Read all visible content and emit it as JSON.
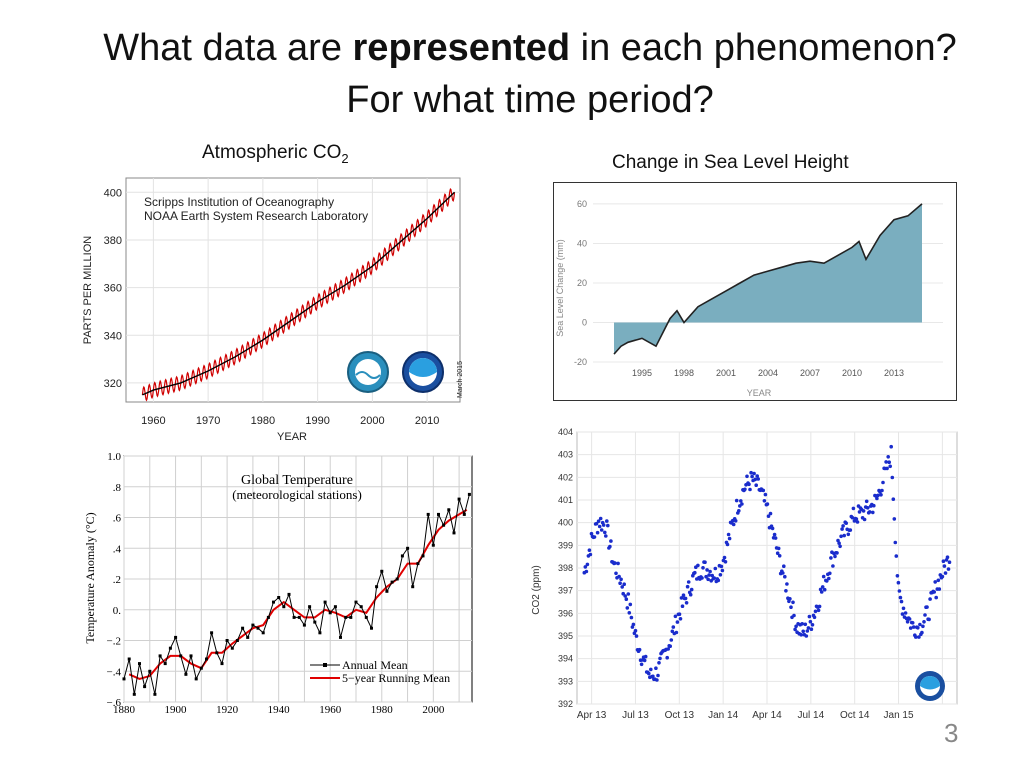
{
  "slide": {
    "title_part1": "What data are ",
    "title_bold": "represented",
    "title_part2": " in each phenomenon?",
    "title_line2": "For what time period?",
    "slide_number": "3"
  },
  "chart_data": [
    {
      "id": "co2",
      "type": "line",
      "caption": "Atmospheric CO",
      "caption_sub": "2",
      "annotation_1": "Scripps Institution of Oceanography",
      "annotation_2": "NOAA Earth System Research Laboratory",
      "date_note": "March 2015",
      "xlabel": "YEAR",
      "ylabel": "PARTS PER MILLION",
      "xlim": [
        1955,
        2016
      ],
      "ylim": [
        312,
        406
      ],
      "xticks": [
        1960,
        1970,
        1980,
        1990,
        2000,
        2010
      ],
      "yticks": [
        320,
        340,
        360,
        380,
        400
      ],
      "series": [
        {
          "color": "#d00000",
          "x": [
            1958,
            1960,
            1965,
            1970,
            1975,
            1980,
            1985,
            1990,
            1995,
            2000,
            2005,
            2010,
            2015
          ],
          "y": [
            315,
            317,
            320,
            325,
            331,
            338,
            346,
            354,
            361,
            369,
            379,
            389,
            400
          ]
        },
        {
          "color": "#000000",
          "x": [
            1958,
            1960,
            1965,
            1970,
            1975,
            1980,
            1985,
            1990,
            1995,
            2000,
            2005,
            2010,
            2015
          ],
          "y": [
            315,
            317,
            320,
            325,
            331,
            338,
            346,
            354,
            361,
            369,
            379,
            389,
            400
          ]
        }
      ],
      "seasonal_amplitude": 3
    },
    {
      "id": "sea-level",
      "type": "area",
      "caption": "Change in Sea Level Height",
      "xlabel": "YEAR",
      "ylabel": "Sea Level Change (mm)",
      "xlim": [
        1991.5,
        2016.5
      ],
      "ylim": [
        -22,
        64
      ],
      "xticks": [
        1995,
        1998,
        2001,
        2004,
        2007,
        2010,
        2013
      ],
      "yticks": [
        -20,
        0,
        20,
        40,
        60
      ],
      "fill_color": "#7aaebf",
      "x": [
        1993,
        1993.5,
        1994,
        1995,
        1996,
        1997,
        1997.5,
        1998,
        1999,
        2000,
        2001,
        2002,
        2003,
        2004,
        2005,
        2006,
        2007,
        2008,
        2009,
        2010,
        2010.5,
        2011,
        2012,
        2013,
        2014,
        2015
      ],
      "y": [
        -16,
        -12,
        -10,
        -8,
        -12,
        2,
        6,
        0,
        8,
        12,
        16,
        20,
        24,
        26,
        28,
        30,
        31,
        30,
        34,
        38,
        41,
        32,
        44,
        52,
        54,
        60
      ]
    },
    {
      "id": "global-temp",
      "type": "line",
      "annotation_1": "Global Temperature",
      "annotation_2": "(meteorological stations)",
      "ylabel": "Temperature Anomaly (°C)",
      "xlim": [
        1880,
        2015
      ],
      "ylim": [
        -0.6,
        1.0
      ],
      "xticks": [
        1880,
        1900,
        1920,
        1940,
        1960,
        1980,
        2000
      ],
      "yticks": [
        -0.6,
        -0.4,
        -0.2,
        0.0,
        0.2,
        0.4,
        0.6,
        0.8,
        1.0
      ],
      "ytick_labels": [
        "−.6",
        "−.4",
        "−.2",
        "0.",
        ".2",
        ".4",
        ".6",
        ".8",
        "1.0"
      ],
      "legend_position": "bottom-right",
      "series": [
        {
          "name": "Annual Mean",
          "color": "#000000",
          "x": [
            1880,
            1882,
            1884,
            1886,
            1888,
            1890,
            1892,
            1894,
            1896,
            1898,
            1900,
            1902,
            1904,
            1906,
            1908,
            1910,
            1912,
            1914,
            1916,
            1918,
            1920,
            1922,
            1924,
            1926,
            1928,
            1930,
            1932,
            1934,
            1936,
            1938,
            1940,
            1942,
            1944,
            1946,
            1948,
            1950,
            1952,
            1954,
            1956,
            1958,
            1960,
            1962,
            1964,
            1966,
            1968,
            1970,
            1972,
            1974,
            1976,
            1978,
            1980,
            1982,
            1984,
            1986,
            1988,
            1990,
            1992,
            1994,
            1996,
            1998,
            2000,
            2002,
            2004,
            2006,
            2008,
            2010,
            2012,
            2014
          ],
          "y": [
            -0.45,
            -0.32,
            -0.55,
            -0.35,
            -0.5,
            -0.4,
            -0.55,
            -0.3,
            -0.35,
            -0.25,
            -0.18,
            -0.3,
            -0.42,
            -0.3,
            -0.45,
            -0.38,
            -0.32,
            -0.15,
            -0.28,
            -0.35,
            -0.2,
            -0.25,
            -0.2,
            -0.12,
            -0.18,
            -0.1,
            -0.12,
            -0.15,
            -0.05,
            0.05,
            0.08,
            0.02,
            0.1,
            -0.05,
            -0.05,
            -0.1,
            0.02,
            -0.08,
            -0.15,
            0.05,
            -0.02,
            0.02,
            -0.18,
            -0.05,
            -0.05,
            0.05,
            0.02,
            -0.05,
            -0.12,
            0.15,
            0.25,
            0.12,
            0.18,
            0.2,
            0.35,
            0.4,
            0.15,
            0.3,
            0.35,
            0.62,
            0.42,
            0.62,
            0.55,
            0.65,
            0.5,
            0.72,
            0.62,
            0.75
          ]
        },
        {
          "name": "5−year Running Mean",
          "color": "#e00000",
          "x": [
            1882,
            1886,
            1890,
            1894,
            1898,
            1902,
            1906,
            1910,
            1914,
            1918,
            1922,
            1926,
            1930,
            1934,
            1938,
            1942,
            1946,
            1950,
            1954,
            1958,
            1962,
            1966,
            1970,
            1974,
            1978,
            1982,
            1986,
            1990,
            1994,
            1998,
            2002,
            2006,
            2010,
            2013
          ],
          "y": [
            -0.42,
            -0.45,
            -0.43,
            -0.35,
            -0.3,
            -0.3,
            -0.35,
            -0.38,
            -0.28,
            -0.28,
            -0.22,
            -0.17,
            -0.12,
            -0.1,
            0.0,
            0.05,
            0.0,
            -0.05,
            -0.05,
            0.0,
            -0.02,
            -0.05,
            0.0,
            -0.02,
            0.08,
            0.15,
            0.2,
            0.3,
            0.3,
            0.42,
            0.52,
            0.58,
            0.62,
            0.65
          ]
        }
      ]
    },
    {
      "id": "co2-recent",
      "type": "scatter",
      "ylabel": "CO2 (ppm)",
      "point_color": "#1a2ccc",
      "xlim": [
        0,
        26
      ],
      "ylim": [
        392,
        404
      ],
      "xticks": [
        1,
        4,
        7,
        10,
        13,
        16,
        19,
        22,
        25
      ],
      "xtick_labels": [
        "Apr 13",
        "Jul 13",
        "Oct 13",
        "Jan 14",
        "Apr 14",
        "Jul 14",
        "Oct 14",
        "Jan 15",
        ""
      ],
      "yticks": [
        392,
        393,
        394,
        395,
        396,
        397,
        398,
        399,
        400,
        401,
        402,
        403,
        404
      ],
      "x": [
        0.5,
        1.0,
        1.5,
        2.0,
        2.5,
        3.0,
        3.5,
        4.0,
        4.5,
        5.0,
        5.5,
        6.0,
        6.5,
        7.0,
        7.5,
        8.0,
        8.5,
        9.0,
        9.5,
        10.0,
        10.5,
        11.0,
        11.5,
        12.0,
        12.5,
        13.0,
        13.5,
        14.0,
        14.5,
        15.0,
        15.5,
        16.0,
        16.5,
        17.0,
        17.5,
        18.0,
        18.5,
        19.0,
        19.5,
        20.0,
        20.5,
        21.0,
        21.5,
        22.0,
        22.5,
        23.0,
        23.5,
        24.0,
        24.5,
        25.0,
        25.5
      ],
      "y": [
        397.8,
        399.2,
        400.1,
        399.8,
        398.2,
        397.5,
        396.5,
        395.0,
        394.0,
        393.2,
        393.4,
        394.2,
        395.0,
        396.0,
        396.8,
        397.6,
        398.0,
        397.9,
        397.7,
        398.3,
        399.6,
        400.8,
        401.6,
        401.9,
        401.5,
        400.6,
        399.3,
        398.0,
        396.8,
        395.5,
        395.1,
        395.6,
        396.5,
        397.5,
        398.5,
        399.2,
        399.8,
        400.3,
        400.4,
        400.6,
        401.0,
        402.0,
        403.0,
        396.8,
        396.0,
        395.4,
        395.4,
        396.0,
        397.0,
        397.8,
        398.5
      ]
    }
  ]
}
